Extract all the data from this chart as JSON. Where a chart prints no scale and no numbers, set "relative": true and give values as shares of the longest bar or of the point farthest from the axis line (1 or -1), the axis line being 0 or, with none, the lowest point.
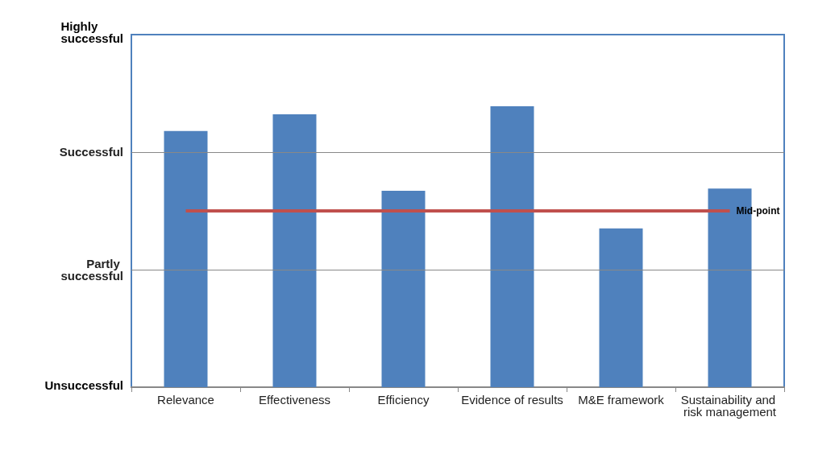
{
  "chart_data": {
    "type": "bar",
    "relative": true,
    "categories": [
      "Relevance",
      "Effectiveness",
      "Efficiency",
      "Evidence of results",
      "M&E framework",
      "Sustainability and risk management"
    ],
    "values": [
      0.912,
      0.971,
      0.699,
      1,
      0.565,
      0.707
    ],
    "color": "#4f81bd",
    "annotations": [
      "Unsuccessful",
      "Highly successful"
    ],
    "ref_lines": [
      {
        "axis": "y",
        "value": 0.418,
        "label": "Partly successful"
      },
      {
        "axis": "y",
        "value": 0.837,
        "label": "Successful"
      },
      {
        "axis": "y",
        "value": 0.628,
        "label": "Mid-point",
        "color": "#c0504d"
      }
    ]
  }
}
